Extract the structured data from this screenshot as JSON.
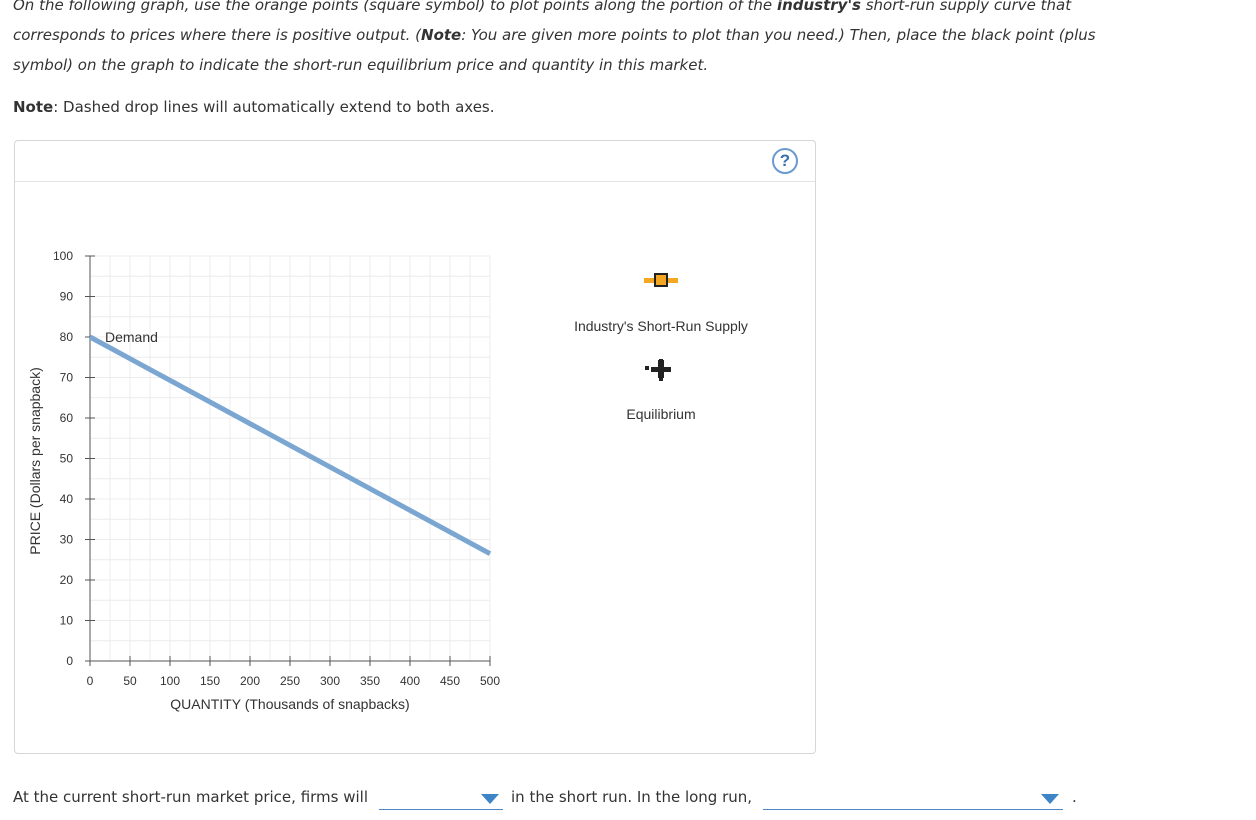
{
  "instructions": {
    "p1": "On the following graph, use the orange points (square symbol) to plot points along the portion of the ",
    "p1_bold": "industry's",
    "p2": " short-run supply curve that corresponds to prices where there is positive output. (",
    "note_inline": "Note",
    "p3": ": You are given more points to plot than you need.) Then, place the black point (plus symbol) on the graph to indicate the short-run equilibrium price and quantity in this market."
  },
  "note": {
    "label": "Note",
    "text": ": Dashed drop lines will automatically extend to both axes."
  },
  "help_label": "?",
  "chart_data": {
    "type": "line",
    "xlabel": "QUANTITY (Thousands of snapbacks)",
    "ylabel": "PRICE (Dollars per snapback)",
    "xlim": [
      0,
      500
    ],
    "ylim": [
      0,
      100
    ],
    "xticks": [
      0,
      50,
      100,
      150,
      200,
      250,
      300,
      350,
      400,
      450,
      500
    ],
    "yticks": [
      0,
      10,
      20,
      30,
      40,
      50,
      60,
      70,
      80,
      90,
      100
    ],
    "grid": true,
    "series": [
      {
        "name": "Demand",
        "color": "#7aa6d1",
        "points": [
          [
            0,
            80
          ],
          [
            500,
            26.5
          ]
        ]
      }
    ]
  },
  "palette": [
    {
      "label": "Industry's Short-Run Supply",
      "symbol": "orange-square",
      "color": "#f5a623"
    },
    {
      "label": "Equilibrium",
      "symbol": "black-plus",
      "color": "#222222"
    }
  ],
  "bottom": {
    "text1": "At the current short-run market price, firms will",
    "text2": "in the short run. In the long run,",
    "text3": ".",
    "dropdown1_value": "",
    "dropdown2_value": ""
  }
}
